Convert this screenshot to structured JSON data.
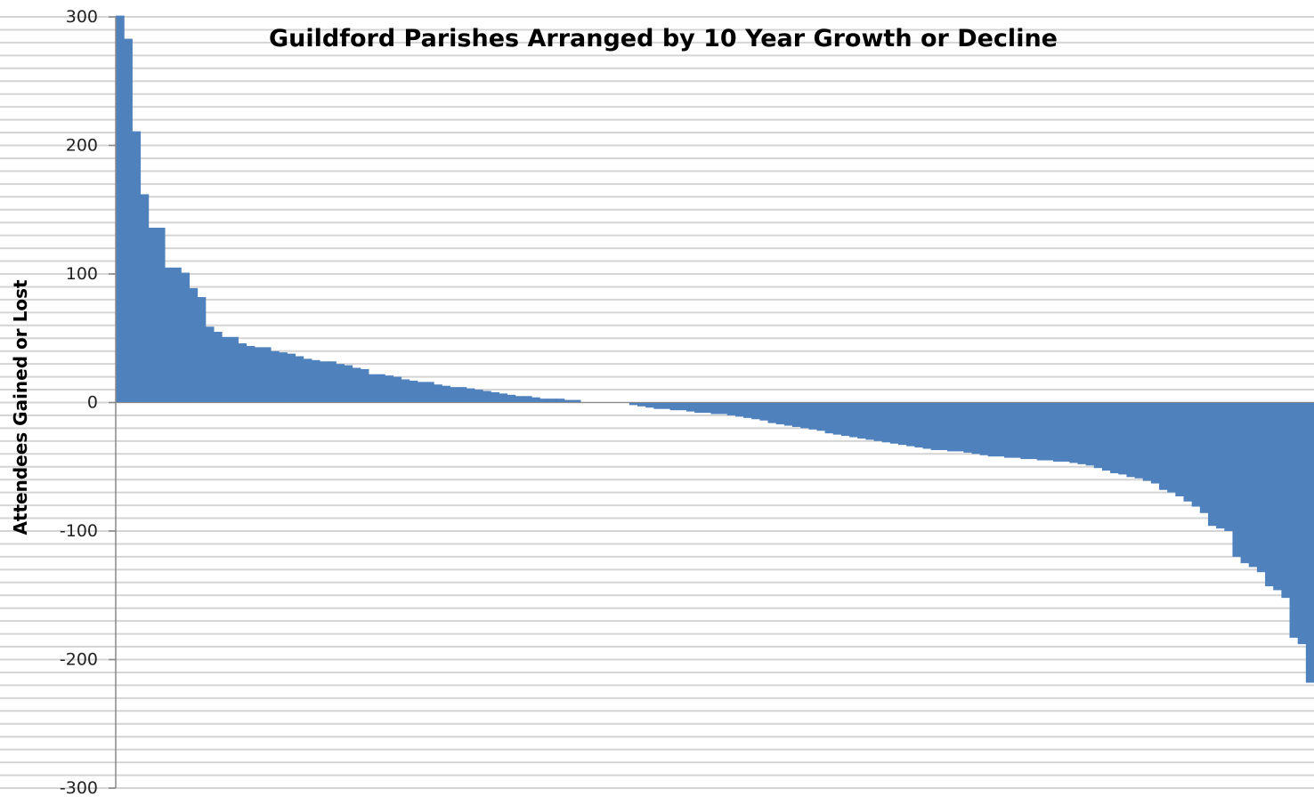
{
  "chart_data": {
    "type": "bar",
    "title": "Guildford Parishes Arranged by 10 Year Growth or Decline",
    "xlabel": "",
    "ylabel": "Attendees Gained or Lost",
    "ylim": [
      -300,
      300
    ],
    "yticks": [
      "300",
      "200",
      "100",
      "0",
      "-100",
      "-200",
      "-300"
    ],
    "grid": true,
    "bar_color": "#4f81bd",
    "grid_color": "#d4d4d4",
    "axis_color": "#888888",
    "values": [
      301,
      283,
      211,
      162,
      136,
      136,
      105,
      105,
      101,
      89,
      82,
      59,
      55,
      51,
      51,
      46,
      44,
      43,
      43,
      40,
      39,
      38,
      36,
      34,
      33,
      32,
      32,
      30,
      29,
      27,
      26,
      22,
      22,
      21,
      20,
      18,
      17,
      16,
      16,
      14,
      13,
      12,
      12,
      11,
      10,
      9,
      8,
      7,
      6,
      5,
      5,
      4,
      3,
      3,
      3,
      2,
      2,
      0,
      0,
      0,
      0,
      0,
      0,
      -2,
      -3,
      -4,
      -5,
      -5,
      -6,
      -6,
      -7,
      -8,
      -8,
      -9,
      -9,
      -10,
      -11,
      -12,
      -13,
      -14,
      -16,
      -17,
      -18,
      -19,
      -20,
      -21,
      -22,
      -24,
      -25,
      -26,
      -27,
      -28,
      -29,
      -30,
      -31,
      -32,
      -33,
      -34,
      -35,
      -36,
      -37,
      -37,
      -38,
      -38,
      -39,
      -40,
      -41,
      -42,
      -42,
      -43,
      -43,
      -44,
      -44,
      -45,
      -45,
      -46,
      -46,
      -47,
      -48,
      -49,
      -51,
      -53,
      -55,
      -56,
      -58,
      -59,
      -61,
      -63,
      -68,
      -70,
      -73,
      -77,
      -81,
      -86,
      -96,
      -98,
      -100,
      -120,
      -125,
      -128,
      -132,
      -143,
      -146,
      -152,
      -183,
      -188,
      -218
    ]
  }
}
